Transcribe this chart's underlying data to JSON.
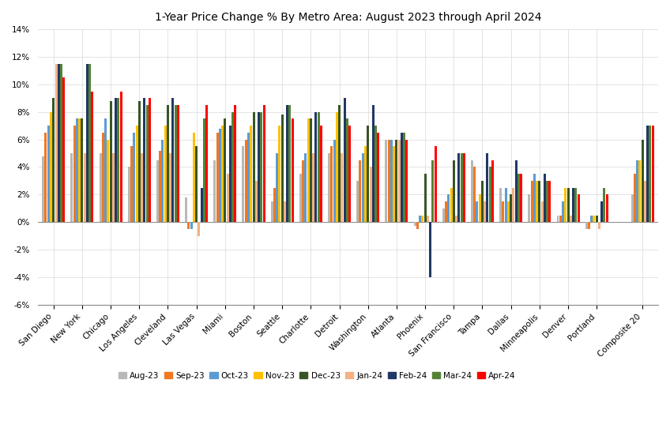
{
  "title": "1-Year Price Change % By Metro Area: August 2023 through April 2024",
  "categories": [
    "San Diego",
    "New York",
    "Chicago",
    "Los Angeles",
    "Cleveland",
    "Las Vegas",
    "Miami",
    "Boston",
    "Seattle",
    "Charlotte",
    "Detroit",
    "Washington",
    "Atlanta",
    "Phoenix",
    "San Francisco",
    "Tampa",
    "Dallas",
    "Minneapolis",
    "Denver",
    "Portland",
    "Composite 20"
  ],
  "series_names": [
    "Aug-23",
    "Sep-23",
    "Oct-23",
    "Nov-23",
    "Dec-23",
    "Jan-24",
    "Feb-24",
    "Mar-24",
    "Apr-24"
  ],
  "series_colors": [
    "#b8b8b8",
    "#f07820",
    "#5b9bd5",
    "#ffc000",
    "#375623",
    "#f4b183",
    "#203864",
    "#548235",
    "#ff0000"
  ],
  "data": {
    "Aug-23": [
      4.8,
      5.0,
      5.0,
      4.0,
      4.5,
      1.8,
      4.5,
      5.5,
      1.5,
      3.5,
      5.0,
      3.0,
      6.0,
      -0.3,
      1.0,
      4.5,
      2.5,
      2.0,
      0.5,
      -0.5,
      2.0
    ],
    "Sep-23": [
      6.5,
      7.0,
      6.5,
      5.5,
      5.2,
      -0.5,
      6.5,
      6.0,
      2.5,
      4.5,
      5.5,
      4.5,
      6.0,
      -0.5,
      1.5,
      4.0,
      1.5,
      3.0,
      0.5,
      -0.5,
      3.5
    ],
    "Oct-23": [
      7.0,
      7.5,
      7.5,
      6.5,
      6.0,
      -0.5,
      6.8,
      6.5,
      5.0,
      5.0,
      6.0,
      5.0,
      6.0,
      0.5,
      2.0,
      1.5,
      2.5,
      3.5,
      1.5,
      0.5,
      4.5
    ],
    "Nov-23": [
      8.0,
      7.5,
      6.0,
      7.0,
      7.0,
      6.5,
      7.0,
      7.0,
      7.0,
      7.5,
      8.0,
      5.5,
      5.5,
      0.5,
      2.5,
      2.0,
      1.5,
      3.0,
      2.5,
      0.5,
      4.5
    ],
    "Dec-23": [
      9.0,
      7.5,
      8.8,
      8.8,
      8.5,
      5.5,
      7.5,
      8.0,
      7.8,
      7.5,
      8.5,
      7.0,
      6.0,
      3.5,
      4.5,
      3.0,
      2.0,
      3.0,
      2.5,
      0.5,
      6.0
    ],
    "Jan-24": [
      11.5,
      5.0,
      5.0,
      5.0,
      5.0,
      -1.0,
      3.5,
      3.0,
      1.5,
      5.0,
      5.0,
      4.0,
      6.0,
      0.5,
      0.5,
      1.5,
      2.5,
      1.5,
      0.5,
      -0.5,
      3.0
    ],
    "Feb-24": [
      11.5,
      11.5,
      9.0,
      9.0,
      9.0,
      2.5,
      7.0,
      8.0,
      8.5,
      8.0,
      9.0,
      8.5,
      6.5,
      -4.0,
      5.0,
      5.0,
      4.5,
      3.5,
      2.5,
      1.5,
      7.0
    ],
    "Mar-24": [
      11.5,
      11.5,
      9.0,
      8.5,
      8.5,
      7.5,
      8.0,
      8.0,
      8.5,
      8.0,
      7.5,
      7.0,
      6.5,
      4.5,
      5.0,
      4.0,
      3.5,
      3.0,
      2.5,
      2.5,
      7.0
    ],
    "Apr-24": [
      10.5,
      9.5,
      9.5,
      9.0,
      8.5,
      8.5,
      8.5,
      8.5,
      7.5,
      7.0,
      7.0,
      6.5,
      6.0,
      5.5,
      5.0,
      4.5,
      3.5,
      3.0,
      2.0,
      2.0,
      7.0
    ]
  },
  "ylim": [
    -6,
    14
  ],
  "yticks": [
    -6,
    -4,
    -2,
    0,
    2,
    4,
    6,
    8,
    10,
    12,
    14
  ],
  "ytick_labels": [
    "-6%",
    "-4%",
    "-2%",
    "0%",
    "2%",
    "4%",
    "6%",
    "8%",
    "10%",
    "12%",
    "14%"
  ],
  "background_color": "#ffffff",
  "grid_color": "#d9d9d9"
}
